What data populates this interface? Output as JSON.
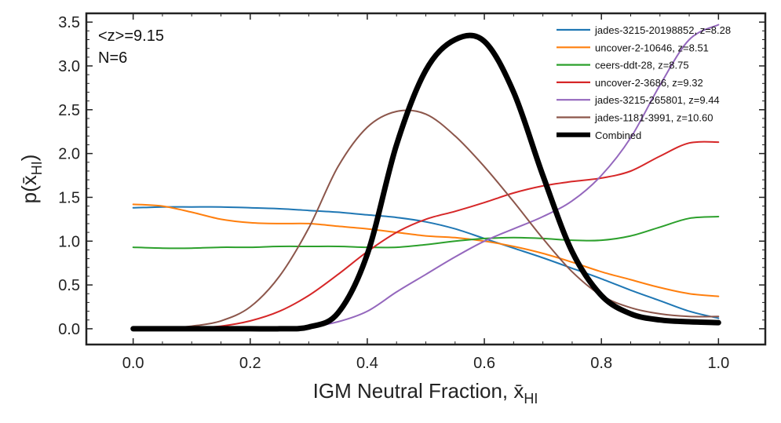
{
  "chart_data": {
    "type": "line",
    "xlabel": "IGM Neutral Fraction, x̄",
    "xlabel_sub": "HI",
    "ylabel_main": "p(x̄",
    "ylabel_sub": "HI",
    "ylabel_close": ")",
    "xlim": [
      -0.08,
      1.08
    ],
    "ylim": [
      -0.18,
      3.6
    ],
    "x_ticks": [
      0.0,
      0.2,
      0.4,
      0.6,
      0.8,
      1.0
    ],
    "x_tick_labels": [
      "0.0",
      "0.2",
      "0.4",
      "0.6",
      "0.8",
      "1.0"
    ],
    "y_ticks": [
      0.0,
      0.5,
      1.0,
      1.5,
      2.0,
      2.5,
      3.0,
      3.5
    ],
    "y_tick_labels": [
      "0.0",
      "0.5",
      "1.0",
      "1.5",
      "2.0",
      "2.5",
      "3.0",
      "3.5"
    ],
    "grid": false,
    "legend_position": "top-right",
    "annotations": [
      "<z>=9.15",
      "N=6"
    ],
    "x": [
      0.0,
      0.05,
      0.1,
      0.15,
      0.2,
      0.25,
      0.3,
      0.35,
      0.4,
      0.45,
      0.5,
      0.55,
      0.6,
      0.65,
      0.7,
      0.75,
      0.8,
      0.85,
      0.9,
      0.95,
      1.0
    ],
    "series": [
      {
        "name": "jades-3215-20198852, z=8.28",
        "color": "#1f77b4",
        "width": 2,
        "values": [
          1.38,
          1.39,
          1.39,
          1.39,
          1.38,
          1.37,
          1.35,
          1.33,
          1.3,
          1.27,
          1.22,
          1.14,
          1.03,
          0.92,
          0.81,
          0.69,
          0.57,
          0.44,
          0.32,
          0.2,
          0.12
        ]
      },
      {
        "name": "uncover-2-10646, z=8.51",
        "color": "#ff7f0e",
        "width": 2,
        "values": [
          1.42,
          1.4,
          1.33,
          1.25,
          1.21,
          1.2,
          1.2,
          1.17,
          1.14,
          1.1,
          1.06,
          1.04,
          1.0,
          0.94,
          0.86,
          0.76,
          0.65,
          0.56,
          0.47,
          0.4,
          0.37
        ]
      },
      {
        "name": "ceers-ddt-28, z=8.75",
        "color": "#2ca02c",
        "width": 2,
        "values": [
          0.93,
          0.92,
          0.92,
          0.93,
          0.93,
          0.94,
          0.94,
          0.94,
          0.93,
          0.93,
          0.96,
          1.0,
          1.03,
          1.04,
          1.03,
          1.01,
          1.01,
          1.06,
          1.16,
          1.26,
          1.28
        ]
      },
      {
        "name": "uncover-2-3686, z=9.32",
        "color": "#d62728",
        "width": 2,
        "values": [
          0.0,
          0.0,
          0.01,
          0.03,
          0.09,
          0.2,
          0.38,
          0.62,
          0.88,
          1.1,
          1.25,
          1.34,
          1.44,
          1.55,
          1.63,
          1.68,
          1.72,
          1.8,
          1.97,
          2.12,
          2.13
        ]
      },
      {
        "name": "jades-3215-265801, z=9.44",
        "color": "#9467bd",
        "width": 2,
        "values": [
          0.0,
          0.0,
          0.0,
          0.0,
          0.0,
          0.0,
          0.02,
          0.08,
          0.2,
          0.42,
          0.62,
          0.82,
          1.0,
          1.14,
          1.28,
          1.46,
          1.75,
          2.18,
          2.78,
          3.3,
          3.47
        ]
      },
      {
        "name": "jades-1181-3991, z=10.60",
        "color": "#8c564b",
        "width": 2,
        "values": [
          0.0,
          0.0,
          0.03,
          0.09,
          0.25,
          0.6,
          1.15,
          1.85,
          2.3,
          2.48,
          2.45,
          2.2,
          1.85,
          1.45,
          1.03,
          0.65,
          0.38,
          0.24,
          0.17,
          0.14,
          0.14
        ]
      },
      {
        "name": "Combined",
        "color": "#000000",
        "width": 7,
        "values": [
          0.0,
          0.0,
          0.0,
          0.0,
          0.0,
          0.0,
          0.02,
          0.18,
          0.85,
          2.1,
          2.95,
          3.3,
          3.28,
          2.7,
          1.75,
          0.88,
          0.38,
          0.17,
          0.1,
          0.08,
          0.07
        ]
      }
    ]
  }
}
